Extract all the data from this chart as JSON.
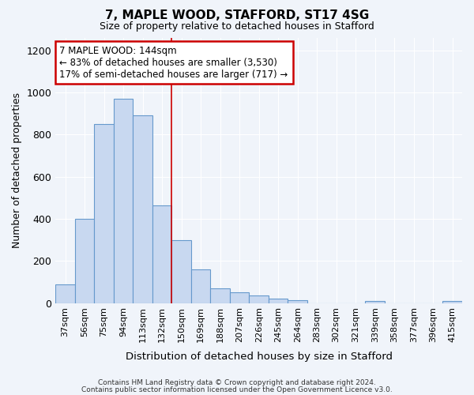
{
  "title": "7, MAPLE WOOD, STAFFORD, ST17 4SG",
  "subtitle": "Size of property relative to detached houses in Stafford",
  "xlabel": "Distribution of detached houses by size in Stafford",
  "ylabel": "Number of detached properties",
  "categories": [
    "37sqm",
    "56sqm",
    "75sqm",
    "94sqm",
    "113sqm",
    "132sqm",
    "150sqm",
    "169sqm",
    "188sqm",
    "207sqm",
    "226sqm",
    "245sqm",
    "264sqm",
    "283sqm",
    "302sqm",
    "321sqm",
    "339sqm",
    "358sqm",
    "377sqm",
    "396sqm",
    "415sqm"
  ],
  "values": [
    90,
    400,
    850,
    970,
    890,
    465,
    300,
    160,
    70,
    50,
    35,
    20,
    15,
    0,
    0,
    0,
    10,
    0,
    0,
    0,
    10
  ],
  "bar_color": "#c8d8f0",
  "bar_edge_color": "#6699cc",
  "annotation_text": "7 MAPLE WOOD: 144sqm\n← 83% of detached houses are smaller (3,530)\n17% of semi-detached houses are larger (717) →",
  "annotation_box_color": "#ffffff",
  "annotation_box_edge_color": "#cc0000",
  "vline_color": "#cc0000",
  "vline_pos": 5.5,
  "ylim": [
    0,
    1260
  ],
  "yticks": [
    0,
    200,
    400,
    600,
    800,
    1000,
    1200
  ],
  "bg_color": "#f0f4fa",
  "plot_bg_color": "#f0f4fa",
  "footer_text1": "Contains HM Land Registry data © Crown copyright and database right 2024.",
  "footer_text2": "Contains public sector information licensed under the Open Government Licence v3.0."
}
